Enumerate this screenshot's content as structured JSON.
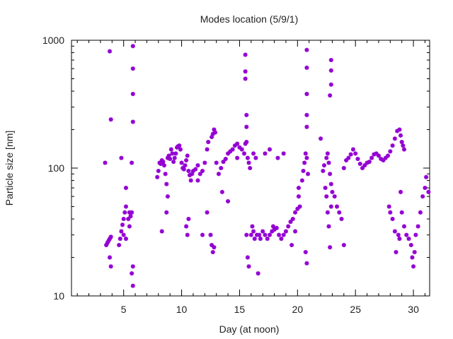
{
  "chart_data": {
    "type": "scatter",
    "title": "Modes location (5/9/1)",
    "xlabel": "Day (at noon)",
    "ylabel": "Particle size [nm]",
    "xlim": [
      0.5,
      31.4
    ],
    "ylim": [
      10,
      1000
    ],
    "yscale": "log",
    "x_ticks": [
      5,
      10,
      15,
      20,
      25,
      30
    ],
    "y_ticks": [
      10,
      100,
      1000
    ],
    "grid": false,
    "legend": "none",
    "marker_color": "#9400d3",
    "series": [
      {
        "points": [
          [
            3.4,
            110
          ],
          [
            3.5,
            25
          ],
          [
            3.6,
            26
          ],
          [
            3.7,
            27
          ],
          [
            3.8,
            28
          ],
          [
            3.8,
            20
          ],
          [
            3.9,
            17
          ],
          [
            3.9,
            29
          ],
          [
            3.8,
            820
          ],
          [
            3.9,
            240
          ],
          [
            4.6,
            25
          ],
          [
            4.7,
            28
          ],
          [
            4.8,
            32
          ],
          [
            4.8,
            120
          ],
          [
            4.9,
            36
          ],
          [
            5.0,
            40
          ],
          [
            5.0,
            30
          ],
          [
            5.1,
            45
          ],
          [
            5.2,
            50
          ],
          [
            5.2,
            70
          ],
          [
            5.2,
            28
          ],
          [
            5.4,
            40
          ],
          [
            5.5,
            45
          ],
          [
            5.5,
            35
          ],
          [
            5.6,
            42
          ],
          [
            5.7,
            45
          ],
          [
            5.7,
            15
          ],
          [
            5.7,
            110
          ],
          [
            5.8,
            12
          ],
          [
            5.8,
            17
          ],
          [
            5.8,
            230
          ],
          [
            5.8,
            380
          ],
          [
            5.8,
            600
          ],
          [
            5.8,
            900
          ],
          [
            7.9,
            85
          ],
          [
            8.0,
            95
          ],
          [
            8.1,
            110
          ],
          [
            8.2,
            108
          ],
          [
            8.3,
            115
          ],
          [
            8.4,
            112
          ],
          [
            8.5,
            105
          ],
          [
            8.6,
            90
          ],
          [
            8.7,
            75
          ],
          [
            8.8,
            120
          ],
          [
            8.9,
            125
          ],
          [
            9.0,
            118
          ],
          [
            8.3,
            32
          ],
          [
            8.7,
            45
          ],
          [
            8.8,
            60
          ],
          [
            9.1,
            140
          ],
          [
            9.2,
            130
          ],
          [
            9.3,
            112
          ],
          [
            9.4,
            120
          ],
          [
            9.5,
            130
          ],
          [
            9.6,
            145
          ],
          [
            9.7,
            148
          ],
          [
            9.8,
            150
          ],
          [
            9.9,
            140
          ],
          [
            10.0,
            110
          ],
          [
            10.1,
            100
          ],
          [
            10.2,
            98
          ],
          [
            10.3,
            105
          ],
          [
            10.4,
            115
          ],
          [
            10.5,
            125
          ],
          [
            10.6,
            95
          ],
          [
            10.7,
            88
          ],
          [
            10.8,
            80
          ],
          [
            10.9,
            90
          ],
          [
            10.4,
            35
          ],
          [
            10.5,
            30
          ],
          [
            10.6,
            40
          ],
          [
            11.0,
            95
          ],
          [
            11.2,
            98
          ],
          [
            11.4,
            105
          ],
          [
            11.6,
            90
          ],
          [
            11.8,
            95
          ],
          [
            12.0,
            110
          ],
          [
            12.2,
            140
          ],
          [
            12.3,
            160
          ],
          [
            11.4,
            80
          ],
          [
            11.8,
            30
          ],
          [
            12.2,
            45
          ],
          [
            12.6,
            175
          ],
          [
            12.7,
            185
          ],
          [
            12.8,
            200
          ],
          [
            12.9,
            190
          ],
          [
            12.5,
            30
          ],
          [
            12.6,
            25
          ],
          [
            12.7,
            22
          ],
          [
            12.8,
            24
          ],
          [
            13.0,
            110
          ],
          [
            13.2,
            90
          ],
          [
            13.4,
            100
          ],
          [
            13.6,
            112
          ],
          [
            13.8,
            118
          ],
          [
            14.0,
            130
          ],
          [
            14.2,
            135
          ],
          [
            14.4,
            140
          ],
          [
            14.6,
            150
          ],
          [
            14.8,
            155
          ],
          [
            13.5,
            65
          ],
          [
            14.0,
            55
          ],
          [
            14.8,
            120
          ],
          [
            15.0,
            145
          ],
          [
            15.2,
            140
          ],
          [
            15.4,
            130
          ],
          [
            15.5,
            155
          ],
          [
            15.6,
            160
          ],
          [
            15.6,
            210
          ],
          [
            15.6,
            260
          ],
          [
            15.5,
            570
          ],
          [
            15.5,
            770
          ],
          [
            15.5,
            500
          ],
          [
            15.7,
            120
          ],
          [
            15.8,
            110
          ],
          [
            15.9,
            100
          ],
          [
            15.6,
            30
          ],
          [
            15.7,
            20
          ],
          [
            15.8,
            17
          ],
          [
            16.2,
            130
          ],
          [
            16.4,
            120
          ],
          [
            16.0,
            30
          ],
          [
            16.1,
            35
          ],
          [
            16.2,
            32
          ],
          [
            16.3,
            28
          ],
          [
            16.5,
            30
          ],
          [
            16.6,
            15
          ],
          [
            16.7,
            30
          ],
          [
            16.8,
            28
          ],
          [
            17.0,
            32
          ],
          [
            17.2,
            30
          ],
          [
            17.4,
            28
          ],
          [
            17.6,
            30
          ],
          [
            17.8,
            32
          ],
          [
            17.9,
            35
          ],
          [
            18.0,
            33
          ],
          [
            18.2,
            34
          ],
          [
            18.4,
            30
          ],
          [
            17.2,
            130
          ],
          [
            17.6,
            140
          ],
          [
            18.3,
            120
          ],
          [
            18.8,
            130
          ],
          [
            18.6,
            28
          ],
          [
            18.8,
            30
          ],
          [
            19.0,
            32
          ],
          [
            19.2,
            35
          ],
          [
            19.4,
            38
          ],
          [
            19.6,
            40
          ],
          [
            19.8,
            45
          ],
          [
            20.0,
            48
          ],
          [
            20.2,
            50
          ],
          [
            19.5,
            25
          ],
          [
            19.8,
            32
          ],
          [
            20.1,
            60
          ],
          [
            20.1,
            70
          ],
          [
            20.4,
            80
          ],
          [
            20.5,
            95
          ],
          [
            20.6,
            110
          ],
          [
            20.7,
            130
          ],
          [
            20.8,
            120
          ],
          [
            20.9,
            90
          ],
          [
            20.7,
            22
          ],
          [
            20.8,
            18
          ],
          [
            20.8,
            210
          ],
          [
            20.8,
            260
          ],
          [
            20.8,
            380
          ],
          [
            20.8,
            610
          ],
          [
            20.8,
            840
          ],
          [
            22.0,
            170
          ],
          [
            22.2,
            95
          ],
          [
            22.3,
            105
          ],
          [
            22.5,
            120
          ],
          [
            22.6,
            130
          ],
          [
            22.7,
            110
          ],
          [
            22.8,
            90
          ],
          [
            22.9,
            75
          ],
          [
            22.9,
            450
          ],
          [
            22.9,
            580
          ],
          [
            22.9,
            700
          ],
          [
            22.8,
            370
          ],
          [
            22.4,
            70
          ],
          [
            22.5,
            60
          ],
          [
            22.6,
            45
          ],
          [
            22.7,
            35
          ],
          [
            22.8,
            24
          ],
          [
            22.9,
            50
          ],
          [
            23.0,
            65
          ],
          [
            23.2,
            60
          ],
          [
            23.4,
            50
          ],
          [
            23.6,
            45
          ],
          [
            23.8,
            40
          ],
          [
            24.0,
            25
          ],
          [
            24.0,
            100
          ],
          [
            24.2,
            115
          ],
          [
            24.4,
            120
          ],
          [
            24.6,
            128
          ],
          [
            24.8,
            140
          ],
          [
            25.0,
            130
          ],
          [
            25.2,
            118
          ],
          [
            25.4,
            108
          ],
          [
            25.6,
            100
          ],
          [
            25.8,
            105
          ],
          [
            26.0,
            110
          ],
          [
            26.2,
            112
          ],
          [
            26.4,
            120
          ],
          [
            26.6,
            128
          ],
          [
            26.8,
            130
          ],
          [
            27.0,
            125
          ],
          [
            27.2,
            118
          ],
          [
            27.4,
            115
          ],
          [
            27.6,
            120
          ],
          [
            27.8,
            125
          ],
          [
            28.0,
            135
          ],
          [
            28.2,
            150
          ],
          [
            28.4,
            170
          ],
          [
            28.6,
            195
          ],
          [
            28.8,
            200
          ],
          [
            28.9,
            180
          ],
          [
            29.0,
            160
          ],
          [
            29.1,
            150
          ],
          [
            29.2,
            140
          ],
          [
            27.9,
            50
          ],
          [
            28.0,
            45
          ],
          [
            28.2,
            40
          ],
          [
            28.4,
            32
          ],
          [
            28.5,
            22
          ],
          [
            28.7,
            30
          ],
          [
            28.8,
            28
          ],
          [
            28.9,
            65
          ],
          [
            29.0,
            45
          ],
          [
            29.2,
            35
          ],
          [
            29.4,
            30
          ],
          [
            29.6,
            28
          ],
          [
            29.8,
            25
          ],
          [
            29.9,
            20
          ],
          [
            30.0,
            17
          ],
          [
            30.1,
            22
          ],
          [
            30.2,
            30
          ],
          [
            30.4,
            35
          ],
          [
            30.6,
            45
          ],
          [
            30.8,
            60
          ],
          [
            31.0,
            70
          ],
          [
            31.1,
            85
          ],
          [
            31.3,
            65
          ]
        ]
      }
    ]
  }
}
